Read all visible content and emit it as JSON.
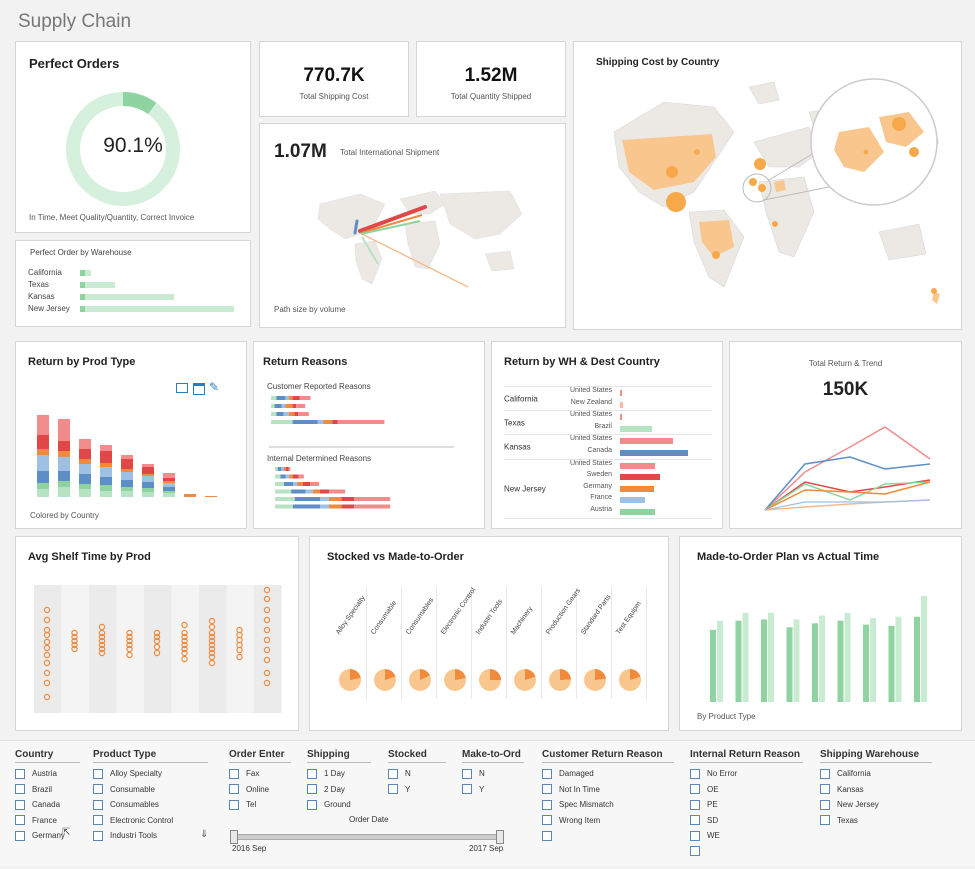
{
  "title": "Supply Chain",
  "perfect_orders": {
    "title": "Perfect Orders",
    "value": "90.1%",
    "fraction": 0.901,
    "caption": "In Time, Meet Quality/Quantity, Correct Invoice"
  },
  "kpis": {
    "shipping_cost": {
      "value": "770.7K",
      "label": "Total Shipping Cost"
    },
    "quantity_shipped": {
      "value": "1.52M",
      "label": "Total Quantity Shipped"
    },
    "intl_shipment": {
      "value": "1.07M",
      "label": "Total  International Shipment",
      "caption": "Path size by volume"
    }
  },
  "perfect_by_wh": {
    "title": "Perfect Order by Warehouse",
    "rows": [
      {
        "label": "California",
        "value": 0.04
      },
      {
        "label": "Texas",
        "value": 0.2
      },
      {
        "label": "Kansas",
        "value": 0.59
      },
      {
        "label": "New Jersey",
        "value": 0.99
      }
    ]
  },
  "shipping_cost_country": {
    "title": "Shipping Cost by Country"
  },
  "return_prod_type": {
    "title": "Return by Prod Type",
    "caption": "Colored by Country"
  },
  "return_reasons": {
    "title": "Return Reasons",
    "customer_label": "Customer Reported Reasons",
    "internal_label": "Internal Determined Reasons"
  },
  "return_wh_dest": {
    "title": "Return by WH & Dest Country",
    "groups": [
      {
        "wh": "California",
        "rows": [
          [
            "United States",
            2,
            "#f28b8b"
          ],
          [
            "New Zealand",
            3,
            "#f7b7a0"
          ]
        ]
      },
      {
        "wh": "Texas",
        "rows": [
          [
            "United States",
            2,
            "#f28b8b"
          ],
          [
            "Brazil",
            32,
            "#b6e3c2"
          ]
        ]
      },
      {
        "wh": "Kansas",
        "rows": [
          [
            "United States",
            53,
            "#f28b8b"
          ],
          [
            "Canada",
            68,
            "#5e8ec6"
          ]
        ]
      },
      {
        "wh": "New Jersey",
        "rows": [
          [
            "United States",
            35,
            "#f28b8b"
          ],
          [
            "Sweden",
            40,
            "#e04848"
          ],
          [
            "Germany",
            34,
            "#f08a3c"
          ],
          [
            "France",
            25,
            "#9ec0e3"
          ],
          [
            "Austria",
            35,
            "#8fd3a0"
          ]
        ]
      }
    ]
  },
  "total_return": {
    "label": "Total Return & Trend",
    "value": "150K"
  },
  "avg_shelf": {
    "title": "Avg Shelf Time by Prod"
  },
  "stocked": {
    "title": "Stocked vs Made-to-Order",
    "categories": [
      "Alloy Specialty",
      "Consumable",
      "Consumables",
      "Electronic Control",
      "Industri Tools",
      "Machinery",
      "Production Gears",
      "Standard Parts",
      "Test Equipm"
    ],
    "made_fraction": [
      0.22,
      0.2,
      0.18,
      0.22,
      0.25,
      0.2,
      0.24,
      0.23,
      0.2
    ]
  },
  "made_to_order": {
    "title": "Made-to-Order Plan vs Actual Time",
    "caption": "By Product Type",
    "plan": [
      55,
      62,
      63,
      57,
      60,
      62,
      59,
      58,
      65
    ],
    "actual": [
      62,
      68,
      68,
      63,
      66,
      68,
      64,
      65,
      81
    ]
  },
  "filters": {
    "country": {
      "label": "Country",
      "items": [
        "Austria",
        "Brazil",
        "Canada",
        "France",
        "Germany"
      ]
    },
    "product_type": {
      "label": "Product Type",
      "items": [
        "Alloy Specialty",
        "Consumable",
        "Consumables",
        "Electronic Control",
        "Industri Tools"
      ]
    },
    "order_enter": {
      "label": "Order Enter",
      "items": [
        "Fax",
        "Online",
        "Tel"
      ]
    },
    "shipping": {
      "label": "Shipping",
      "items": [
        "1 Day",
        "2 Day",
        "Ground"
      ]
    },
    "stocked": {
      "label": "Stocked",
      "items": [
        "N",
        "Y"
      ]
    },
    "make_to_ord": {
      "label": "Make-to-Ord",
      "items": [
        "N",
        "Y"
      ]
    },
    "customer_reason": {
      "label": "Customer Return Reason",
      "items": [
        "Damaged",
        "Not In Time",
        "Spec Mismatch",
        "Wrong Item",
        ""
      ]
    },
    "internal_reason": {
      "label": "Internal Return Reason",
      "items": [
        "No Error",
        "OE",
        "PE",
        "SD",
        "WE",
        ""
      ]
    },
    "warehouse": {
      "label": "Shipping Warehouse",
      "items": [
        "California",
        "Kansas",
        "New Jersey",
        "Texas"
      ]
    },
    "order_date": {
      "label": "Order Date",
      "start": "2016 Sep",
      "end": "2017 Sep"
    }
  },
  "colors": {
    "green": "#8fd3a0",
    "orange": "#f7a94a",
    "red": "#e04848",
    "blue": "#5e8ec6"
  }
}
